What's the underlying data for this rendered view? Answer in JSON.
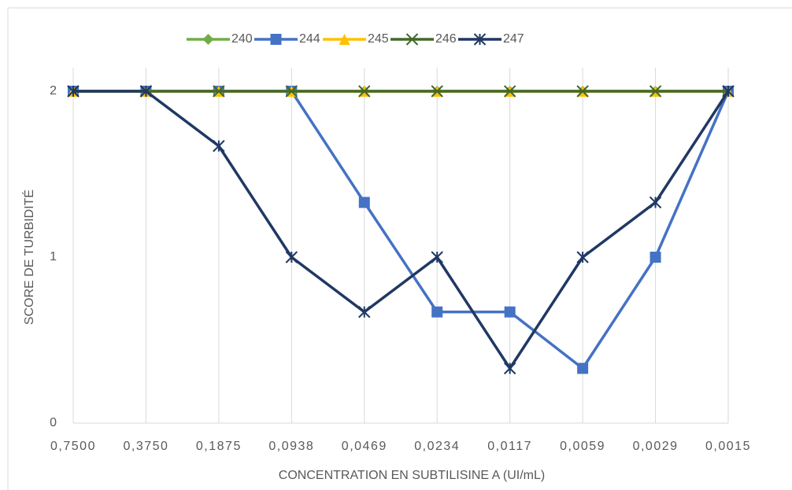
{
  "chart_data": {
    "type": "line",
    "xlabel": "CONCENTRATION EN SUBTILISINE A (UI/mL)",
    "ylabel": "SCORE DE TURBIDITÉ",
    "categories": [
      "0,7500",
      "0,3750",
      "0,1875",
      "0,0938",
      "0,0469",
      "0,0234",
      "0,0117",
      "0,0059",
      "0,0029",
      "0,0015"
    ],
    "series": [
      {
        "name": "240",
        "color": "#70ad47",
        "marker": "diamond",
        "values": [
          2,
          2,
          2,
          2,
          2,
          2,
          2,
          2,
          2,
          2
        ]
      },
      {
        "name": "244",
        "color": "#4472c4",
        "marker": "square",
        "values": [
          2,
          2,
          2,
          2,
          1.33,
          0.67,
          0.67,
          0.33,
          1,
          2
        ]
      },
      {
        "name": "245",
        "color": "#ffc000",
        "marker": "triangle",
        "values": [
          2,
          2,
          2,
          2,
          2,
          2,
          2,
          2,
          2,
          2
        ]
      },
      {
        "name": "246",
        "color": "#43682b",
        "marker": "x",
        "values": [
          2,
          2,
          2,
          2,
          2,
          2,
          2,
          2,
          2,
          2
        ]
      },
      {
        "name": "247",
        "color": "#203864",
        "marker": "star",
        "values": [
          2,
          2,
          1.67,
          1,
          0.67,
          1,
          0.33,
          1,
          1.33,
          2
        ]
      }
    ],
    "ylim": [
      0,
      2
    ],
    "yticks": [
      0,
      1,
      2
    ],
    "grid": true,
    "legend": "top"
  }
}
